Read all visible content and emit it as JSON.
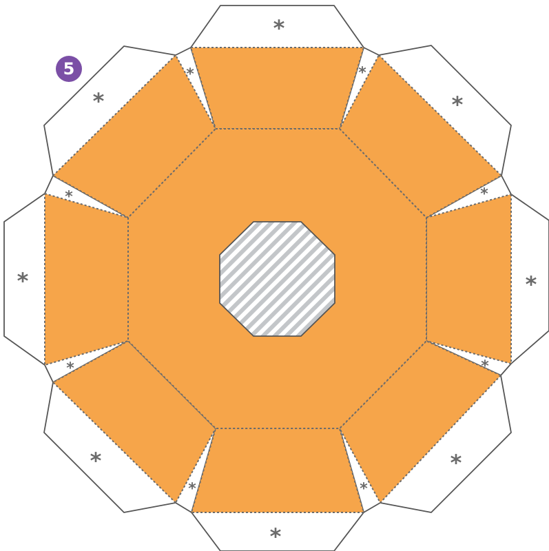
{
  "step_badge": {
    "number": "5",
    "color": "#7b4fa6"
  },
  "colors": {
    "panel_fill": "#f6a54a",
    "outline": "#555555",
    "fold_line": "#6b6b6b",
    "hatch_light": "#ffffff",
    "hatch_dark": "#c3c6c9"
  },
  "glue_mark": {
    "symbol": "*",
    "count_large": 8,
    "count_small": 8
  },
  "icons": {
    "glue_tab": "asterisk-glue-icon",
    "center_cutout": "octagon-hatched-cutout-icon"
  }
}
